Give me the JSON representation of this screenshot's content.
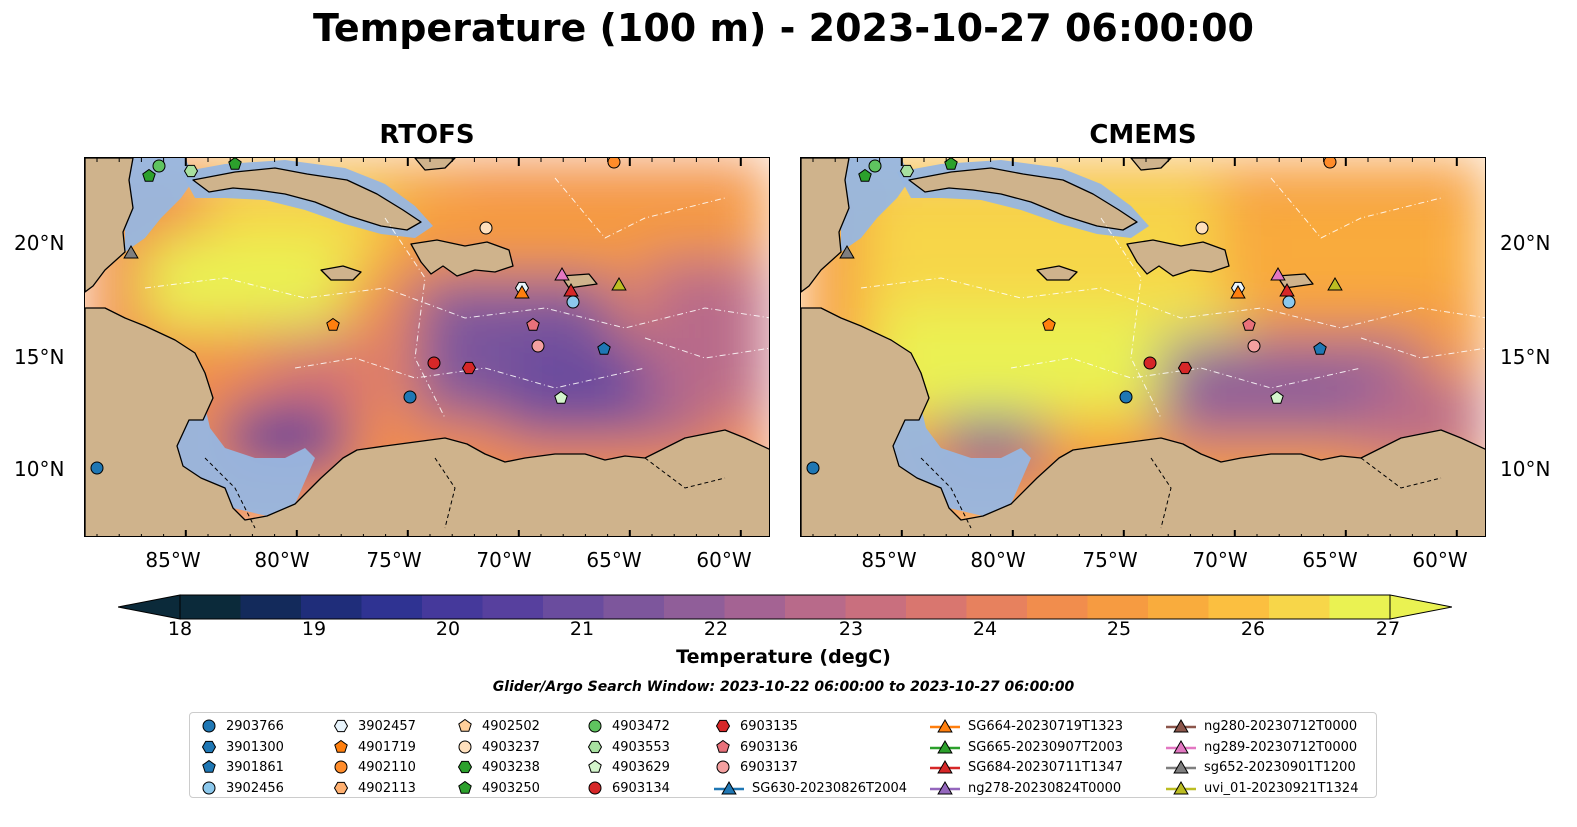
{
  "figure": {
    "title": "Temperature (100 m) - 2023-10-27 06:00:00"
  },
  "panels": [
    {
      "title": "RTOFS"
    },
    {
      "title": "CMEMS"
    }
  ],
  "axes": {
    "lat_labels": [
      "20°N",
      "15°N",
      "10°N"
    ],
    "lon_labels": [
      "85°W",
      "80°W",
      "75°W",
      "70°W",
      "65°W",
      "60°W"
    ],
    "lon_values": [
      -85,
      -80,
      -75,
      -70,
      -65,
      -60
    ],
    "lat_values": [
      20,
      15,
      10
    ],
    "extent": {
      "lon_min": -89.5,
      "lon_max": -58.0,
      "lat_min": 7.0,
      "lat_max": 23.8
    }
  },
  "colorbar": {
    "label": "Temperature (degC)",
    "ticks": [
      "18",
      "19",
      "20",
      "21",
      "22",
      "23",
      "24",
      "25",
      "26",
      "27"
    ],
    "range": [
      18,
      27
    ],
    "extend": "both",
    "colors": [
      "#0b2a3a",
      "#132a5b",
      "#1f2d7a",
      "#2f3392",
      "#45399b",
      "#57409e",
      "#6a4c9e",
      "#7d569c",
      "#905e99",
      "#a46393",
      "#b86a8a",
      "#c96f7e",
      "#d9766f",
      "#e7815e",
      "#f18d4d",
      "#f69b41",
      "#f9ac3d",
      "#fbbf40",
      "#f7d649",
      "#eaf252"
    ]
  },
  "search_window": "Glider/Argo Search Window: 2023-10-22 06:00:00 to 2023-10-27 06:00:00",
  "legend": {
    "items": [
      {
        "label": "2903766",
        "marker": "circle",
        "color": "#1f77b4"
      },
      {
        "label": "3901300",
        "marker": "hexagon",
        "color": "#1f77b4"
      },
      {
        "label": "3901861",
        "marker": "pentagon",
        "color": "#1f77b4"
      },
      {
        "label": "3902456",
        "marker": "circle",
        "color": "#8cc8ec"
      },
      {
        "label": "3902457",
        "marker": "hexagon",
        "color": "#e8f4fc"
      },
      {
        "label": "4901719",
        "marker": "pentagon",
        "color": "#ff7f0e"
      },
      {
        "label": "4902110",
        "marker": "circle",
        "color": "#ff8c2a"
      },
      {
        "label": "4902113",
        "marker": "hexagon",
        "color": "#ffb070"
      },
      {
        "label": "4902502",
        "marker": "pentagon",
        "color": "#ffcf9a"
      },
      {
        "label": "4903237",
        "marker": "circle",
        "color": "#ffe0bd"
      },
      {
        "label": "4903238",
        "marker": "hexagon",
        "color": "#2ca02c"
      },
      {
        "label": "4903250",
        "marker": "pentagon",
        "color": "#2ca02c"
      },
      {
        "label": "4903472",
        "marker": "circle",
        "color": "#5fc35f"
      },
      {
        "label": "4903553",
        "marker": "hexagon",
        "color": "#a8e0a0"
      },
      {
        "label": "4903629",
        "marker": "pentagon",
        "color": "#d4f5cc"
      },
      {
        "label": "6903134",
        "marker": "circle",
        "color": "#d62728"
      },
      {
        "label": "6903135",
        "marker": "hexagon",
        "color": "#d62728"
      },
      {
        "label": "6903136",
        "marker": "pentagon",
        "color": "#e8717a"
      },
      {
        "label": "6903137",
        "marker": "circle",
        "color": "#f4a0a0"
      },
      {
        "label": "SG630-20230826T2004",
        "marker": "triangle-line",
        "color": "#1f77b4"
      },
      {
        "label": "SG664-20230719T1323",
        "marker": "triangle-line",
        "color": "#ff7f0e"
      },
      {
        "label": "SG665-20230907T2003",
        "marker": "triangle-line",
        "color": "#2ca02c"
      },
      {
        "label": "SG684-20230711T1347",
        "marker": "triangle-line",
        "color": "#d62728"
      },
      {
        "label": "ng278-20230824T0000",
        "marker": "triangle-line",
        "color": "#9467bd"
      },
      {
        "label": "ng280-20230712T0000",
        "marker": "triangle-line",
        "color": "#8c564b"
      },
      {
        "label": "ng289-20230712T0000",
        "marker": "triangle-line",
        "color": "#e377c2"
      },
      {
        "label": "sg652-20230901T1200",
        "marker": "triangle-line",
        "color": "#7f7f7f"
      },
      {
        "label": "uvi_01-20230921T1324",
        "marker": "triangle-line",
        "color": "#bcbd22"
      }
    ]
  },
  "colors": {
    "land": "#cfb38c",
    "shelf": "#97b6e0",
    "coastline": "#000000"
  }
}
